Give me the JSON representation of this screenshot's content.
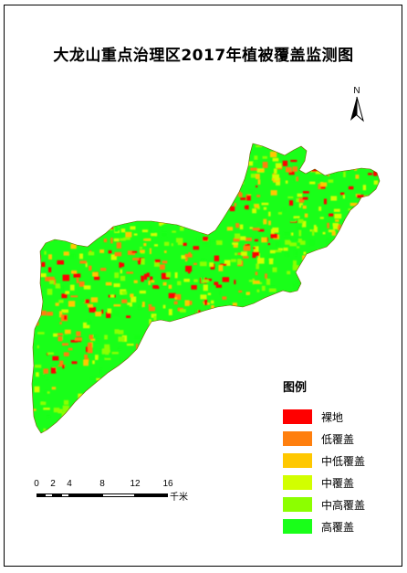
{
  "map": {
    "title": "大龙山重点治理区2017年植被覆盖监测图",
    "north_label": "N"
  },
  "legend": {
    "title": "图例",
    "items": [
      {
        "label": "裸地",
        "color": "#ff0000"
      },
      {
        "label": "低覆盖",
        "color": "#ff7f0e"
      },
      {
        "label": "中低覆盖",
        "color": "#ffc800"
      },
      {
        "label": "中覆盖",
        "color": "#d2ff00"
      },
      {
        "label": "中高覆盖",
        "color": "#8cff00"
      },
      {
        "label": "高覆盖",
        "color": "#19ff19"
      }
    ]
  },
  "scale_bar": {
    "ticks": [
      "0",
      "2",
      "4",
      "8",
      "12",
      "16"
    ],
    "unit": "千米"
  }
}
